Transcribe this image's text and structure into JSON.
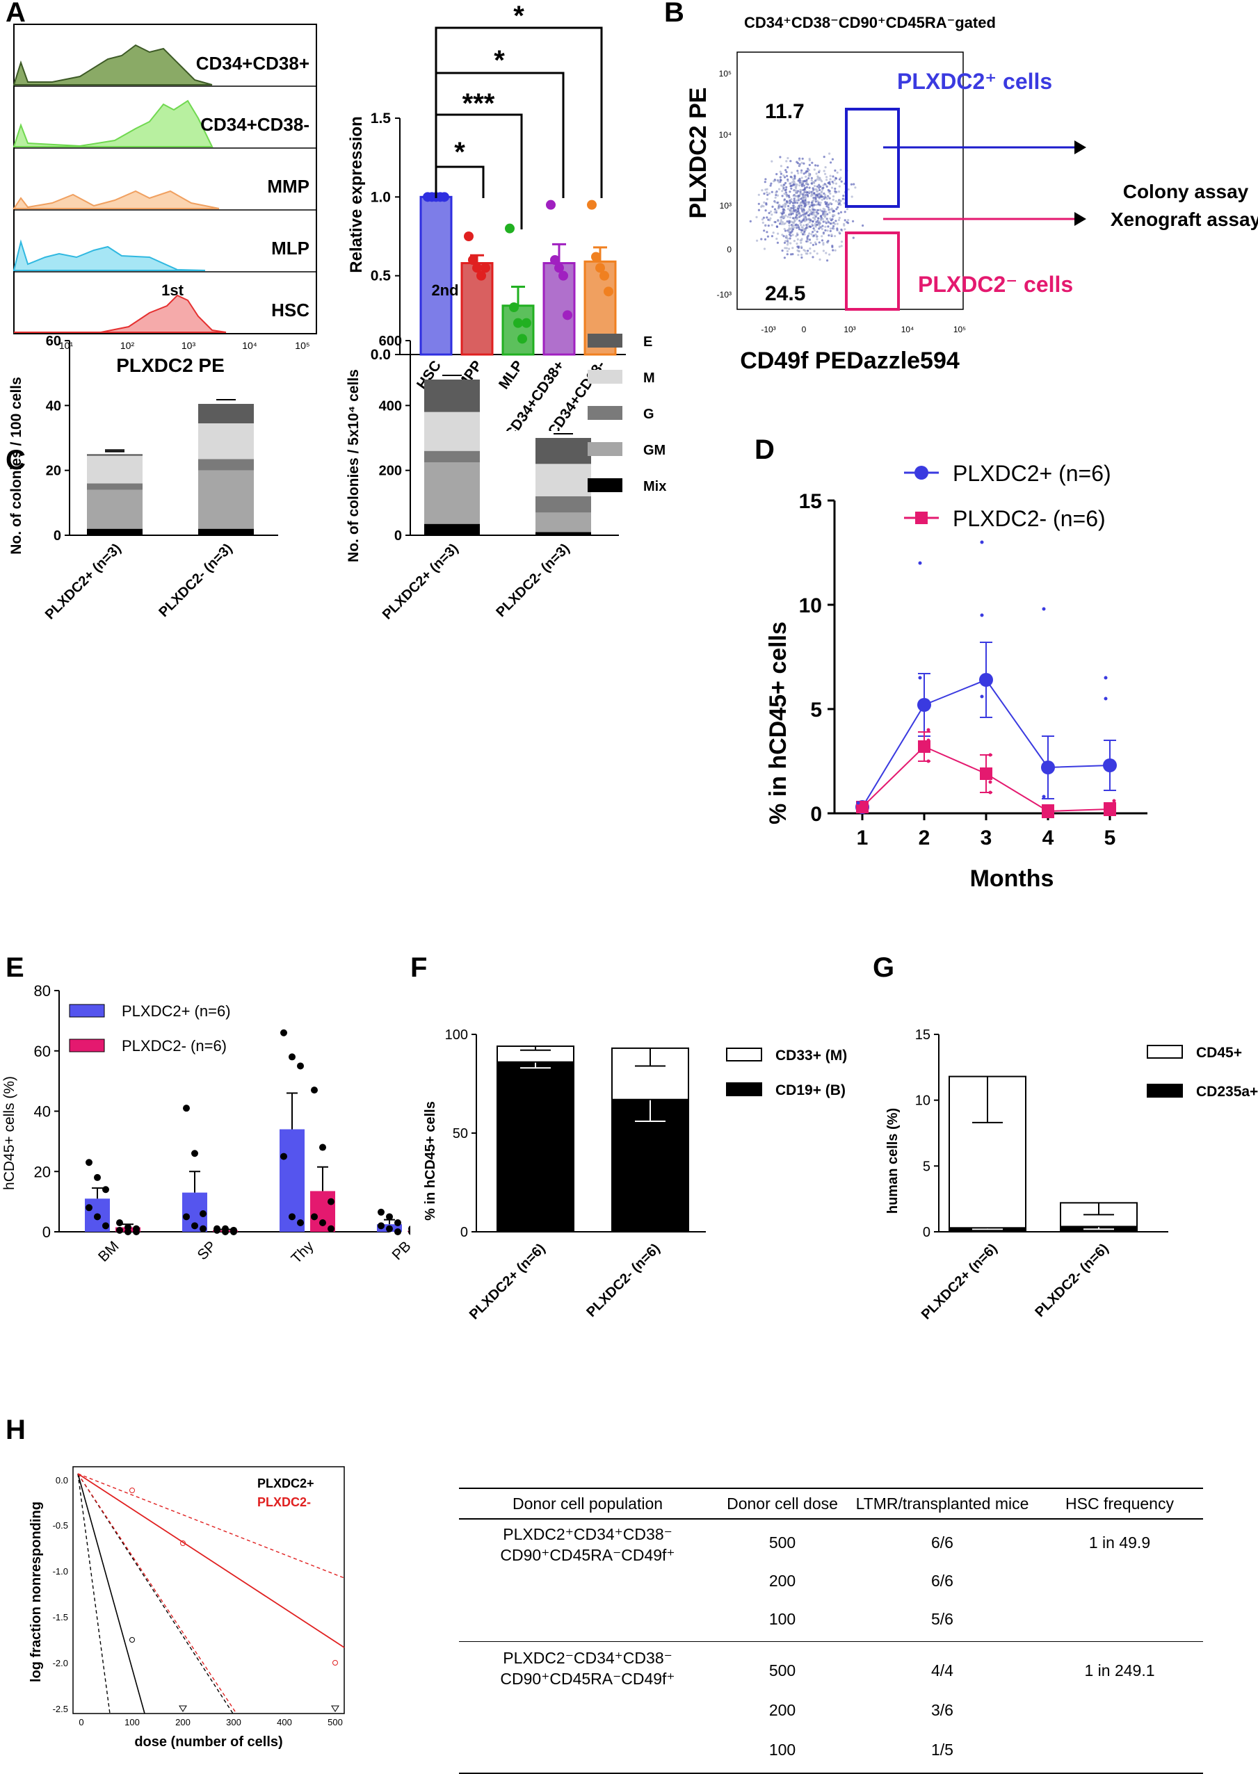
{
  "panel_letters": [
    "A",
    "B",
    "C",
    "D",
    "E",
    "F",
    "G",
    "H"
  ],
  "colors": {
    "plxdc2_pos": "#3a3ae0",
    "plxdc2_neg": "#e4196f",
    "hsc": "#2f2fe0",
    "mpp": "#e02020",
    "mlp": "#21b021",
    "cd34_cd38pos": "#a020c0",
    "cd34_cd38neg": "#f08020"
  },
  "panelA": {
    "hist_labels": [
      "CD34+CD38+",
      "CD34+CD38-",
      "MMP",
      "MLP",
      "HSC"
    ],
    "hist_colors": [
      "#5a7d3c",
      "#7fe05a",
      "#f5a060",
      "#40c8e8",
      "#f05050"
    ],
    "x_ticks": [
      "10¹",
      "10²",
      "10³",
      "10⁴",
      "10⁵"
    ],
    "xlabel": "PLXDC2 PE",
    "sig": [
      "*",
      "***",
      "*",
      "*"
    ]
  },
  "panelB": {
    "gate_title": "CD34⁺CD38⁻CD90⁺CD45RA⁻gated",
    "ylabel": "PLXDC2 PE",
    "xlabel": "CD49f PEDazzle594",
    "pos_pct": "11.7",
    "neg_pct": "24.5",
    "pos_label": "PLXDC2⁺ cells",
    "neg_label": "PLXDC2⁻ cells",
    "assay1": "Colony assay",
    "assay2": "Xenograft assay",
    "y_ticks": [
      "10⁵",
      "10⁴",
      "10³",
      "0",
      "-10³"
    ],
    "x_ticks": [
      "-10³",
      "0",
      "10³",
      "10⁴",
      "10⁵"
    ]
  },
  "panelH": {
    "legend": [
      "PLXDC2+",
      "PLXDC2-"
    ],
    "ylabel": "log fraction nonresponding",
    "xlabel": "dose (number of cells)",
    "y_ticks": [
      "0.0",
      "-0.5",
      "-1.0",
      "-1.5",
      "-2.0",
      "-2.5"
    ],
    "x_ticks": [
      "0",
      "100",
      "200",
      "300",
      "400",
      "500"
    ]
  },
  "table": {
    "headers": [
      "Donor cell population",
      "Donor cell dose",
      "LTMR/transplanted mice",
      "HSC frequency"
    ],
    "pop1_line1": "PLXDC2⁺CD34⁺CD38⁻",
    "pop1_line2": "CD90⁺CD45RA⁻CD49f⁺",
    "pop2_line1": "PLXDC2⁻CD34⁺CD38⁻",
    "pop2_line2": "CD90⁺CD45RA⁻CD49f⁺",
    "group1": [
      {
        "dose": "500",
        "ltmr": "6/6",
        "freq": "1 in 49.9"
      },
      {
        "dose": "200",
        "ltmr": "6/6",
        "freq": ""
      },
      {
        "dose": "100",
        "ltmr": "5/6",
        "freq": ""
      }
    ],
    "group2": [
      {
        "dose": "500",
        "ltmr": "4/4",
        "freq": "1 in 249.1"
      },
      {
        "dose": "200",
        "ltmr": "3/6",
        "freq": ""
      },
      {
        "dose": "100",
        "ltmr": "1/5",
        "freq": ""
      }
    ]
  },
  "chart_data": [
    {
      "id": "A_bar",
      "type": "bar",
      "categories": [
        "HSC",
        "MPP",
        "MLP",
        "CD34+CD38+",
        "CD34+CD38-"
      ],
      "values": [
        1.0,
        0.58,
        0.31,
        0.58,
        0.59
      ],
      "errors": [
        0.0,
        0.05,
        0.12,
        0.12,
        0.09
      ],
      "points": [
        [
          1,
          1,
          1,
          1,
          1
        ],
        [
          0.75,
          0.6,
          0.55,
          0.5,
          0.55
        ],
        [
          0.8,
          0.3,
          0.2,
          0.1,
          0.2
        ],
        [
          0.95,
          0.6,
          0.55,
          0.5,
          0.25
        ],
        [
          0.95,
          0.62,
          0.55,
          0.5,
          0.4
        ]
      ],
      "ylabel": "Relative expression",
      "ylim": [
        0,
        1.5
      ],
      "y_ticks": [
        "0.0",
        "0.5",
        "1.0",
        "1.5"
      ]
    },
    {
      "id": "C1",
      "type": "bar",
      "title": "1st",
      "categories": [
        "PLXDC2+ (n=3)",
        "PLXDC2- (n=3)"
      ],
      "series": [
        {
          "name": "Mix",
          "values": [
            2,
            2
          ]
        },
        {
          "name": "GM",
          "values": [
            12,
            18
          ]
        },
        {
          "name": "G",
          "values": [
            2,
            3.5
          ]
        },
        {
          "name": "M",
          "values": [
            8.5,
            11
          ]
        },
        {
          "name": "E",
          "values": [
            0.5,
            6
          ]
        }
      ],
      "ylabel": "No. of colonies / 100 cells",
      "ylim": [
        0,
        60
      ],
      "y_ticks": [
        "0",
        "20",
        "40",
        "60"
      ]
    },
    {
      "id": "C2",
      "type": "bar",
      "title": "2nd",
      "categories": [
        "PLXDC2+ (n=3)",
        "PLXDC2- (n=3)"
      ],
      "series": [
        {
          "name": "Mix",
          "values": [
            35,
            10
          ]
        },
        {
          "name": "GM",
          "values": [
            190,
            60
          ]
        },
        {
          "name": "G",
          "values": [
            35,
            50
          ]
        },
        {
          "name": "M",
          "values": [
            120,
            100
          ]
        },
        {
          "name": "E",
          "values": [
            100,
            80
          ]
        }
      ],
      "legend": [
        "E",
        "M",
        "G",
        "GM",
        "Mix"
      ],
      "ylabel": "No. of colonies / 5x10⁴ cells",
      "ylim": [
        0,
        600
      ],
      "y_ticks": [
        "0",
        "200",
        "400",
        "600"
      ]
    },
    {
      "id": "D",
      "type": "line",
      "x": [
        1,
        2,
        3,
        4,
        5
      ],
      "series": [
        {
          "name": "PLXDC2+ (n=6)",
          "values": [
            0.3,
            5.2,
            6.4,
            2.2,
            2.3
          ]
        },
        {
          "name": "PLXDC2- (n=6)",
          "values": [
            0.3,
            3.2,
            1.9,
            0.1,
            0.2
          ]
        }
      ],
      "xlabel": "Months",
      "ylabel": "% in hCD45+ cells",
      "ylim": [
        0,
        15
      ],
      "y_ticks": [
        "0",
        "5",
        "10",
        "15"
      ]
    },
    {
      "id": "E",
      "type": "bar",
      "categories": [
        "BM",
        "SP",
        "Thy",
        "PB"
      ],
      "series": [
        {
          "name": "PLXDC2+ (n=6)",
          "values": [
            11,
            13,
            34,
            2.5
          ]
        },
        {
          "name": "PLXDC2- (n=6)",
          "values": [
            1.5,
            0.5,
            13.5,
            0.3
          ]
        }
      ],
      "ylabel": "hCD45+ cells (%)",
      "ylim": [
        0,
        80
      ],
      "y_ticks": [
        "0",
        "20",
        "40",
        "60",
        "80"
      ]
    },
    {
      "id": "F",
      "type": "bar",
      "categories": [
        "PLXDC2+ (n=6)",
        "PLXDC2- (n=6)"
      ],
      "series": [
        {
          "name": "CD19+ (B)",
          "values": [
            86,
            67
          ]
        },
        {
          "name": "CD33+ (M)",
          "values": [
            8,
            26
          ]
        }
      ],
      "ylabel": "% in hCD45+ cells",
      "ylim": [
        0,
        100
      ],
      "y_ticks": [
        "0",
        "50",
        "100"
      ]
    },
    {
      "id": "G",
      "type": "bar",
      "categories": [
        "PLXDC2+ (n=6)",
        "PLXDC2- (n=6)"
      ],
      "series": [
        {
          "name": "CD235a+",
          "values": [
            0.3,
            0.4
          ]
        },
        {
          "name": "CD45+",
          "values": [
            11.5,
            1.8
          ]
        }
      ],
      "ylabel": "human cells (%)",
      "ylim": [
        0,
        15
      ],
      "y_ticks": [
        "0",
        "5",
        "10",
        "15"
      ]
    }
  ]
}
